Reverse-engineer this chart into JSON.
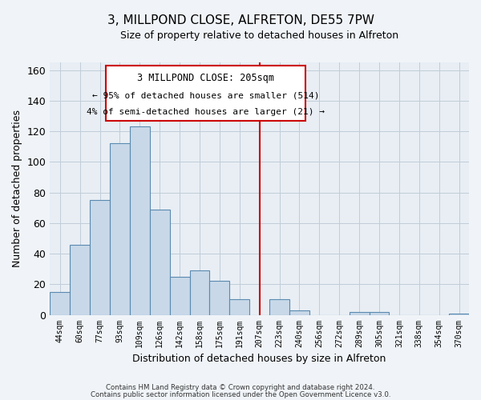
{
  "title": "3, MILLPOND CLOSE, ALFRETON, DE55 7PW",
  "subtitle": "Size of property relative to detached houses in Alfreton",
  "xlabel": "Distribution of detached houses by size in Alfreton",
  "ylabel": "Number of detached properties",
  "bar_labels": [
    "44sqm",
    "60sqm",
    "77sqm",
    "93sqm",
    "109sqm",
    "126sqm",
    "142sqm",
    "158sqm",
    "175sqm",
    "191sqm",
    "207sqm",
    "223sqm",
    "240sqm",
    "256sqm",
    "272sqm",
    "289sqm",
    "305sqm",
    "321sqm",
    "338sqm",
    "354sqm",
    "370sqm"
  ],
  "bar_values": [
    15,
    46,
    75,
    112,
    123,
    69,
    25,
    29,
    22,
    10,
    0,
    10,
    3,
    0,
    0,
    2,
    2,
    0,
    0,
    0,
    1
  ],
  "bar_color": "#c8d8e8",
  "bar_edge_color": "#5a8ab0",
  "vline_color": "#cc0000",
  "ylim": [
    0,
    165
  ],
  "yticks": [
    0,
    20,
    40,
    60,
    80,
    100,
    120,
    140,
    160
  ],
  "annotation_title": "3 MILLPOND CLOSE: 205sqm",
  "annotation_line1": "← 95% of detached houses are smaller (514)",
  "annotation_line2": "4% of semi-detached houses are larger (21) →",
  "footer_line1": "Contains HM Land Registry data © Crown copyright and database right 2024.",
  "footer_line2": "Contains public sector information licensed under the Open Government Licence v3.0.",
  "plot_bg_color": "#e8eef4",
  "fig_bg_color": "#f0f4f8",
  "grid_color": "#c0ccd8"
}
